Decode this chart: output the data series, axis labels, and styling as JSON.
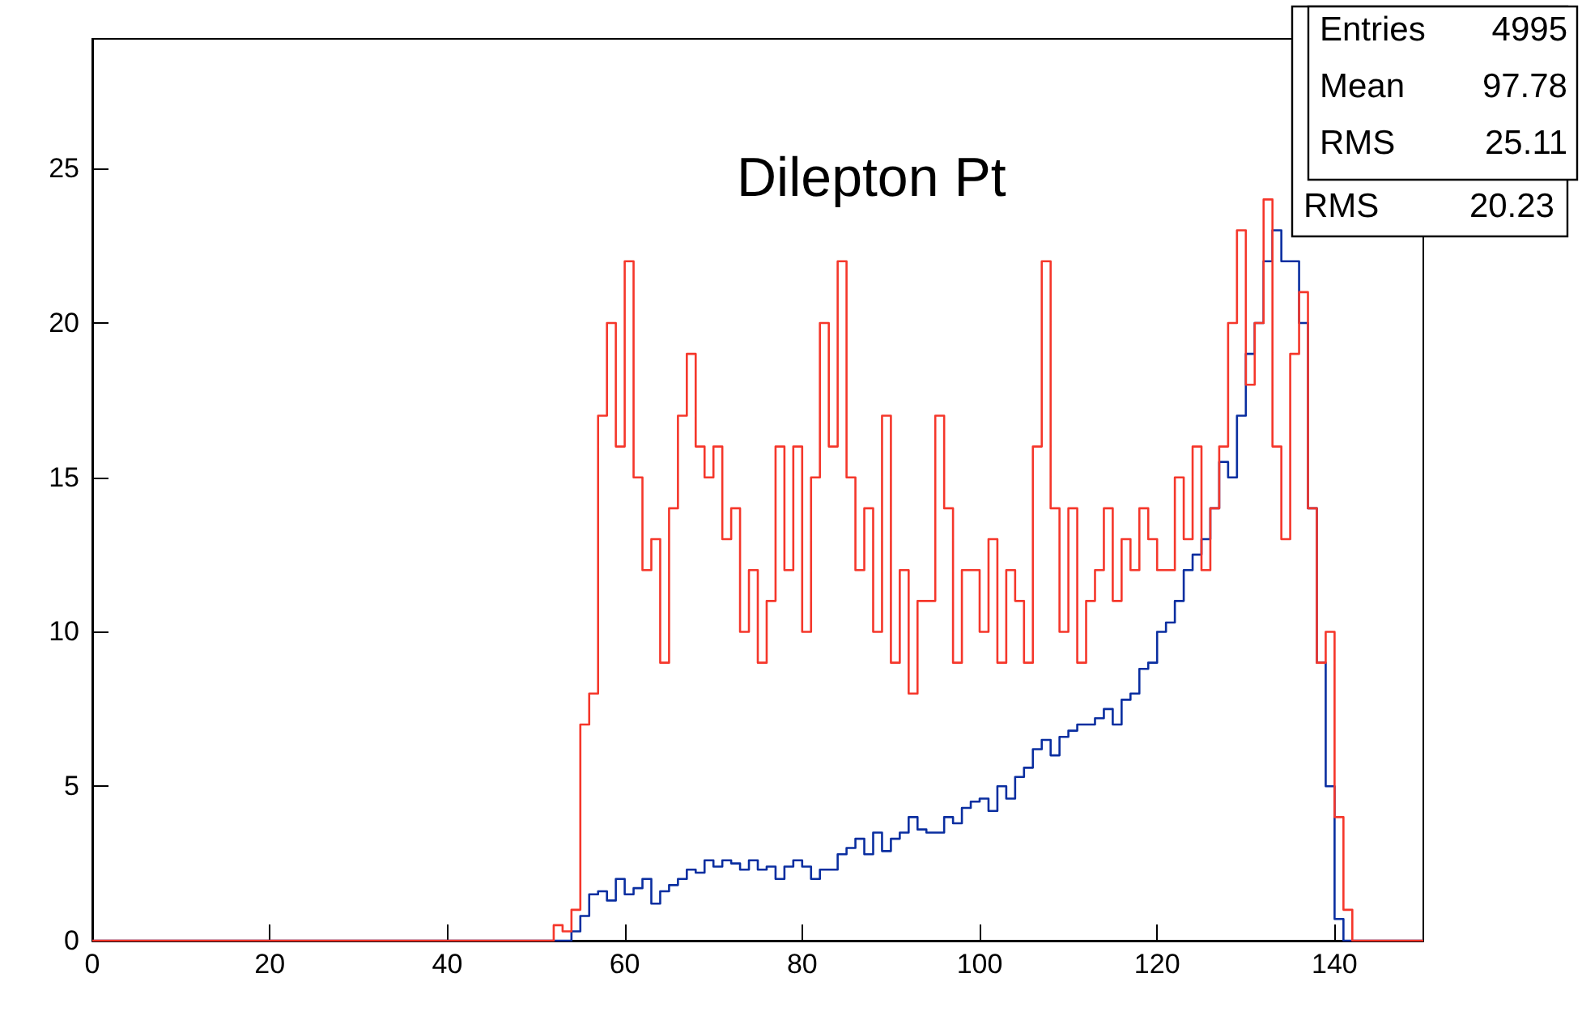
{
  "chart_data": {
    "type": "histogram",
    "title": "Dilepton Pt",
    "bins": [
      0,
      52,
      53,
      54,
      55,
      56,
      57,
      58,
      59,
      60,
      61,
      62,
      63,
      64,
      65,
      66,
      67,
      68,
      69,
      70,
      71,
      72,
      73,
      74,
      75,
      76,
      77,
      78,
      79,
      80,
      81,
      82,
      83,
      84,
      85,
      86,
      87,
      88,
      89,
      90,
      91,
      92,
      93,
      94,
      95,
      96,
      97,
      98,
      99,
      100,
      101,
      102,
      103,
      104,
      105,
      106,
      107,
      108,
      109,
      110,
      111,
      112,
      113,
      114,
      115,
      116,
      117,
      118,
      119,
      120,
      121,
      122,
      123,
      124,
      125,
      126,
      127,
      128,
      129,
      130,
      131,
      132,
      133,
      134,
      135,
      136,
      137,
      138,
      139,
      140,
      141,
      142,
      150
    ],
    "series": [
      {
        "color": "#0a2ea0",
        "values": [
          0,
          0,
          0,
          0.3,
          0.8,
          1.5,
          1.6,
          1.3,
          2.0,
          1.5,
          1.7,
          2.0,
          1.2,
          1.6,
          1.8,
          2.0,
          2.3,
          2.2,
          2.6,
          2.4,
          2.6,
          2.5,
          2.3,
          2.6,
          2.3,
          2.4,
          2.0,
          2.4,
          2.6,
          2.4,
          2.0,
          2.3,
          2.3,
          2.8,
          3.0,
          3.3,
          2.8,
          3.5,
          2.9,
          3.3,
          3.5,
          4.0,
          3.6,
          3.5,
          3.5,
          4.0,
          3.8,
          4.3,
          4.5,
          4.6,
          4.2,
          5.0,
          4.6,
          5.3,
          5.6,
          6.2,
          6.5,
          6.0,
          6.6,
          6.8,
          7.0,
          7.0,
          7.2,
          7.5,
          7.0,
          7.8,
          8.0,
          8.8,
          9.0,
          10,
          10.3,
          11,
          12,
          12.5,
          13,
          14,
          15.5,
          15,
          17,
          19,
          20,
          22,
          23,
          22,
          22,
          20,
          14,
          9,
          5,
          0.7,
          0,
          0
        ]
      },
      {
        "color": "#f5372b",
        "values": [
          0,
          0.5,
          0.3,
          1,
          7,
          8,
          17,
          20,
          16,
          22,
          15,
          12,
          13,
          9,
          14,
          17,
          19,
          16,
          15,
          16,
          13,
          14,
          10,
          12,
          9,
          11,
          16,
          12,
          16,
          10,
          15,
          20,
          16,
          22,
          15,
          12,
          14,
          10,
          17,
          9,
          12,
          8,
          11,
          11,
          17,
          14,
          9,
          12,
          12,
          10,
          13,
          9,
          12,
          11,
          9,
          16,
          22,
          14,
          10,
          14,
          9,
          11,
          12,
          14,
          11,
          13,
          12,
          14,
          13,
          12,
          12,
          15,
          13,
          16,
          12,
          14,
          16,
          20,
          23,
          18,
          20,
          24,
          16,
          13,
          19,
          21,
          14,
          9,
          10,
          4,
          1,
          0
        ]
      }
    ],
    "xlim": [
      0,
      150
    ],
    "xticks": [
      0,
      20,
      40,
      60,
      80,
      100,
      120,
      140
    ],
    "ylim": [
      0,
      29.2
    ],
    "yticks": [
      0,
      5,
      10,
      15,
      20,
      25
    ],
    "annotations": [
      "Entries",
      "4995",
      "Mean",
      "97.78",
      "RMS",
      "25.11",
      "RMS",
      "20.23"
    ],
    "grid": false
  }
}
